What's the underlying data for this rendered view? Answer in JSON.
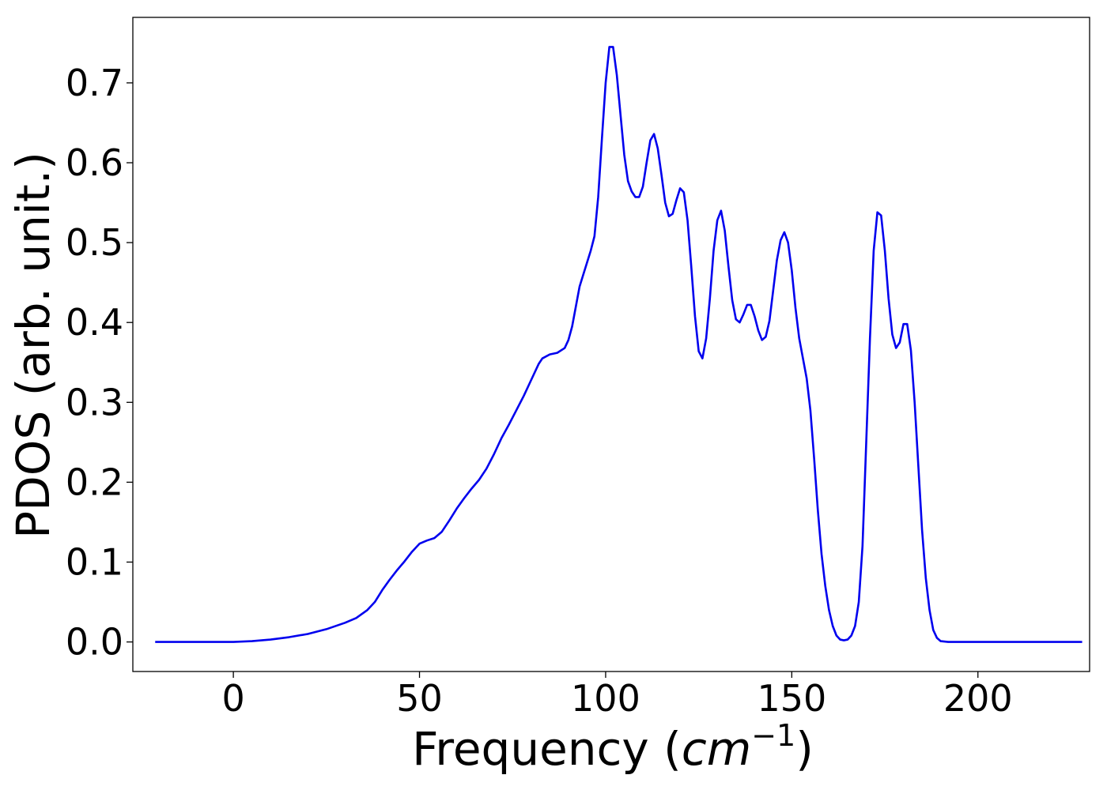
{
  "chart_data": {
    "type": "line",
    "title": "",
    "xlabel": "Frequency (",
    "xlabel_math": "cm",
    "xlabel_sup": "−1",
    "xlabel_end": ")",
    "ylabel": "PDOS (arb. unit.)",
    "xlim": [
      -27,
      230
    ],
    "ylim": [
      -0.037,
      0.782
    ],
    "grid": false,
    "x_ticks": [
      0,
      50,
      100,
      150,
      200
    ],
    "x_tick_labels": [
      "0",
      "50",
      "100",
      "150",
      "200"
    ],
    "y_ticks": [
      0.0,
      0.1,
      0.2,
      0.3,
      0.4,
      0.5,
      0.6,
      0.7
    ],
    "y_tick_labels": [
      "0.0",
      "0.1",
      "0.2",
      "0.3",
      "0.4",
      "0.5",
      "0.6",
      "0.7"
    ],
    "colors": {
      "line": "#0000ee"
    },
    "series": [
      {
        "values": [
          [
            -21,
            0.0
          ],
          [
            -10,
            0.0
          ],
          [
            0,
            0.0
          ],
          [
            5,
            0.001
          ],
          [
            10,
            0.003
          ],
          [
            15,
            0.006
          ],
          [
            20,
            0.01
          ],
          [
            25,
            0.016
          ],
          [
            30,
            0.024
          ],
          [
            33,
            0.03
          ],
          [
            36,
            0.04
          ],
          [
            38,
            0.05
          ],
          [
            40,
            0.065
          ],
          [
            42,
            0.078
          ],
          [
            44,
            0.09
          ],
          [
            46,
            0.101
          ],
          [
            48,
            0.113
          ],
          [
            50,
            0.123
          ],
          [
            52,
            0.127
          ],
          [
            54,
            0.13
          ],
          [
            56,
            0.138
          ],
          [
            58,
            0.152
          ],
          [
            60,
            0.167
          ],
          [
            62,
            0.18
          ],
          [
            64,
            0.192
          ],
          [
            66,
            0.203
          ],
          [
            68,
            0.217
          ],
          [
            70,
            0.235
          ],
          [
            72,
            0.255
          ],
          [
            74,
            0.272
          ],
          [
            76,
            0.29
          ],
          [
            78,
            0.308
          ],
          [
            80,
            0.328
          ],
          [
            82,
            0.348
          ],
          [
            83,
            0.355
          ],
          [
            85,
            0.36
          ],
          [
            87,
            0.362
          ],
          [
            89,
            0.368
          ],
          [
            90,
            0.378
          ],
          [
            91,
            0.395
          ],
          [
            92,
            0.42
          ],
          [
            93,
            0.445
          ],
          [
            94,
            0.46
          ],
          [
            95,
            0.475
          ],
          [
            96,
            0.49
          ],
          [
            97,
            0.508
          ],
          [
            98,
            0.557
          ],
          [
            99,
            0.63
          ],
          [
            100,
            0.7
          ],
          [
            101,
            0.745
          ],
          [
            102,
            0.745
          ],
          [
            103,
            0.71
          ],
          [
            104,
            0.66
          ],
          [
            105,
            0.61
          ],
          [
            106,
            0.577
          ],
          [
            107,
            0.564
          ],
          [
            108,
            0.557
          ],
          [
            109,
            0.557
          ],
          [
            110,
            0.57
          ],
          [
            111,
            0.6
          ],
          [
            112,
            0.628
          ],
          [
            113,
            0.636
          ],
          [
            114,
            0.618
          ],
          [
            115,
            0.585
          ],
          [
            116,
            0.55
          ],
          [
            117,
            0.533
          ],
          [
            118,
            0.536
          ],
          [
            119,
            0.553
          ],
          [
            120,
            0.568
          ],
          [
            121,
            0.563
          ],
          [
            122,
            0.528
          ],
          [
            123,
            0.47
          ],
          [
            124,
            0.408
          ],
          [
            125,
            0.364
          ],
          [
            126,
            0.355
          ],
          [
            127,
            0.38
          ],
          [
            128,
            0.43
          ],
          [
            129,
            0.49
          ],
          [
            130,
            0.528
          ],
          [
            131,
            0.54
          ],
          [
            132,
            0.515
          ],
          [
            133,
            0.47
          ],
          [
            134,
            0.428
          ],
          [
            135,
            0.404
          ],
          [
            136,
            0.4
          ],
          [
            137,
            0.41
          ],
          [
            138,
            0.422
          ],
          [
            139,
            0.422
          ],
          [
            140,
            0.408
          ],
          [
            141,
            0.39
          ],
          [
            142,
            0.378
          ],
          [
            143,
            0.382
          ],
          [
            144,
            0.402
          ],
          [
            145,
            0.44
          ],
          [
            146,
            0.478
          ],
          [
            147,
            0.503
          ],
          [
            148,
            0.513
          ],
          [
            149,
            0.5
          ],
          [
            150,
            0.465
          ],
          [
            151,
            0.418
          ],
          [
            152,
            0.38
          ],
          [
            153,
            0.355
          ],
          [
            154,
            0.33
          ],
          [
            155,
            0.29
          ],
          [
            156,
            0.23
          ],
          [
            157,
            0.165
          ],
          [
            158,
            0.11
          ],
          [
            159,
            0.07
          ],
          [
            160,
            0.04
          ],
          [
            161,
            0.02
          ],
          [
            162,
            0.008
          ],
          [
            163,
            0.003
          ],
          [
            164,
            0.002
          ],
          [
            165,
            0.003
          ],
          [
            166,
            0.008
          ],
          [
            167,
            0.02
          ],
          [
            168,
            0.05
          ],
          [
            169,
            0.12
          ],
          [
            170,
            0.25
          ],
          [
            171,
            0.38
          ],
          [
            172,
            0.49
          ],
          [
            173,
            0.538
          ],
          [
            174,
            0.534
          ],
          [
            175,
            0.49
          ],
          [
            176,
            0.43
          ],
          [
            177,
            0.385
          ],
          [
            178,
            0.368
          ],
          [
            179,
            0.375
          ],
          [
            180,
            0.398
          ],
          [
            181,
            0.398
          ],
          [
            182,
            0.365
          ],
          [
            183,
            0.3
          ],
          [
            184,
            0.22
          ],
          [
            185,
            0.14
          ],
          [
            186,
            0.08
          ],
          [
            187,
            0.04
          ],
          [
            188,
            0.015
          ],
          [
            189,
            0.005
          ],
          [
            190,
            0.001
          ],
          [
            192,
            0.0
          ],
          [
            200,
            0.0
          ],
          [
            228,
            0.0
          ]
        ]
      }
    ]
  }
}
